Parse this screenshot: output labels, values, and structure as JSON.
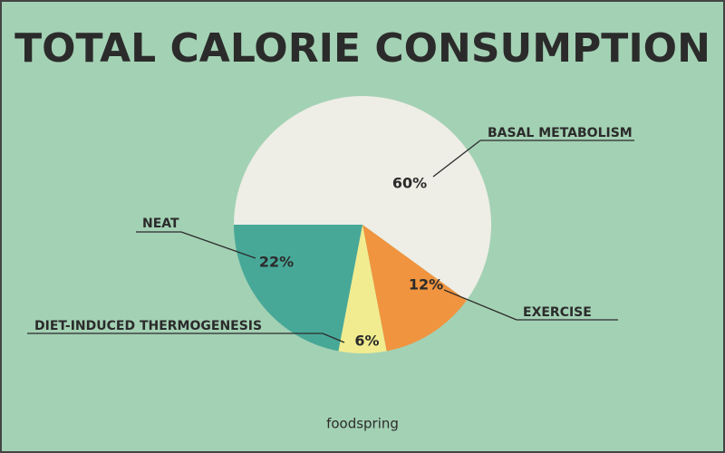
{
  "chart_data": {
    "type": "pie",
    "title": "TOTAL CALORIE CONSUMPTION",
    "categories": [
      "BASAL METABOLISM",
      "EXERCISE",
      "DIET-INDUCED THERMOGENESIS",
      "NEAT"
    ],
    "values": [
      60,
      12,
      6,
      22
    ],
    "value_labels": [
      "60%",
      "12%",
      "6%",
      "22%"
    ],
    "colors": [
      "#eeede6",
      "#f0943f",
      "#f1ec90",
      "#48a898"
    ]
  },
  "footer": {
    "brand": "foodspring"
  }
}
